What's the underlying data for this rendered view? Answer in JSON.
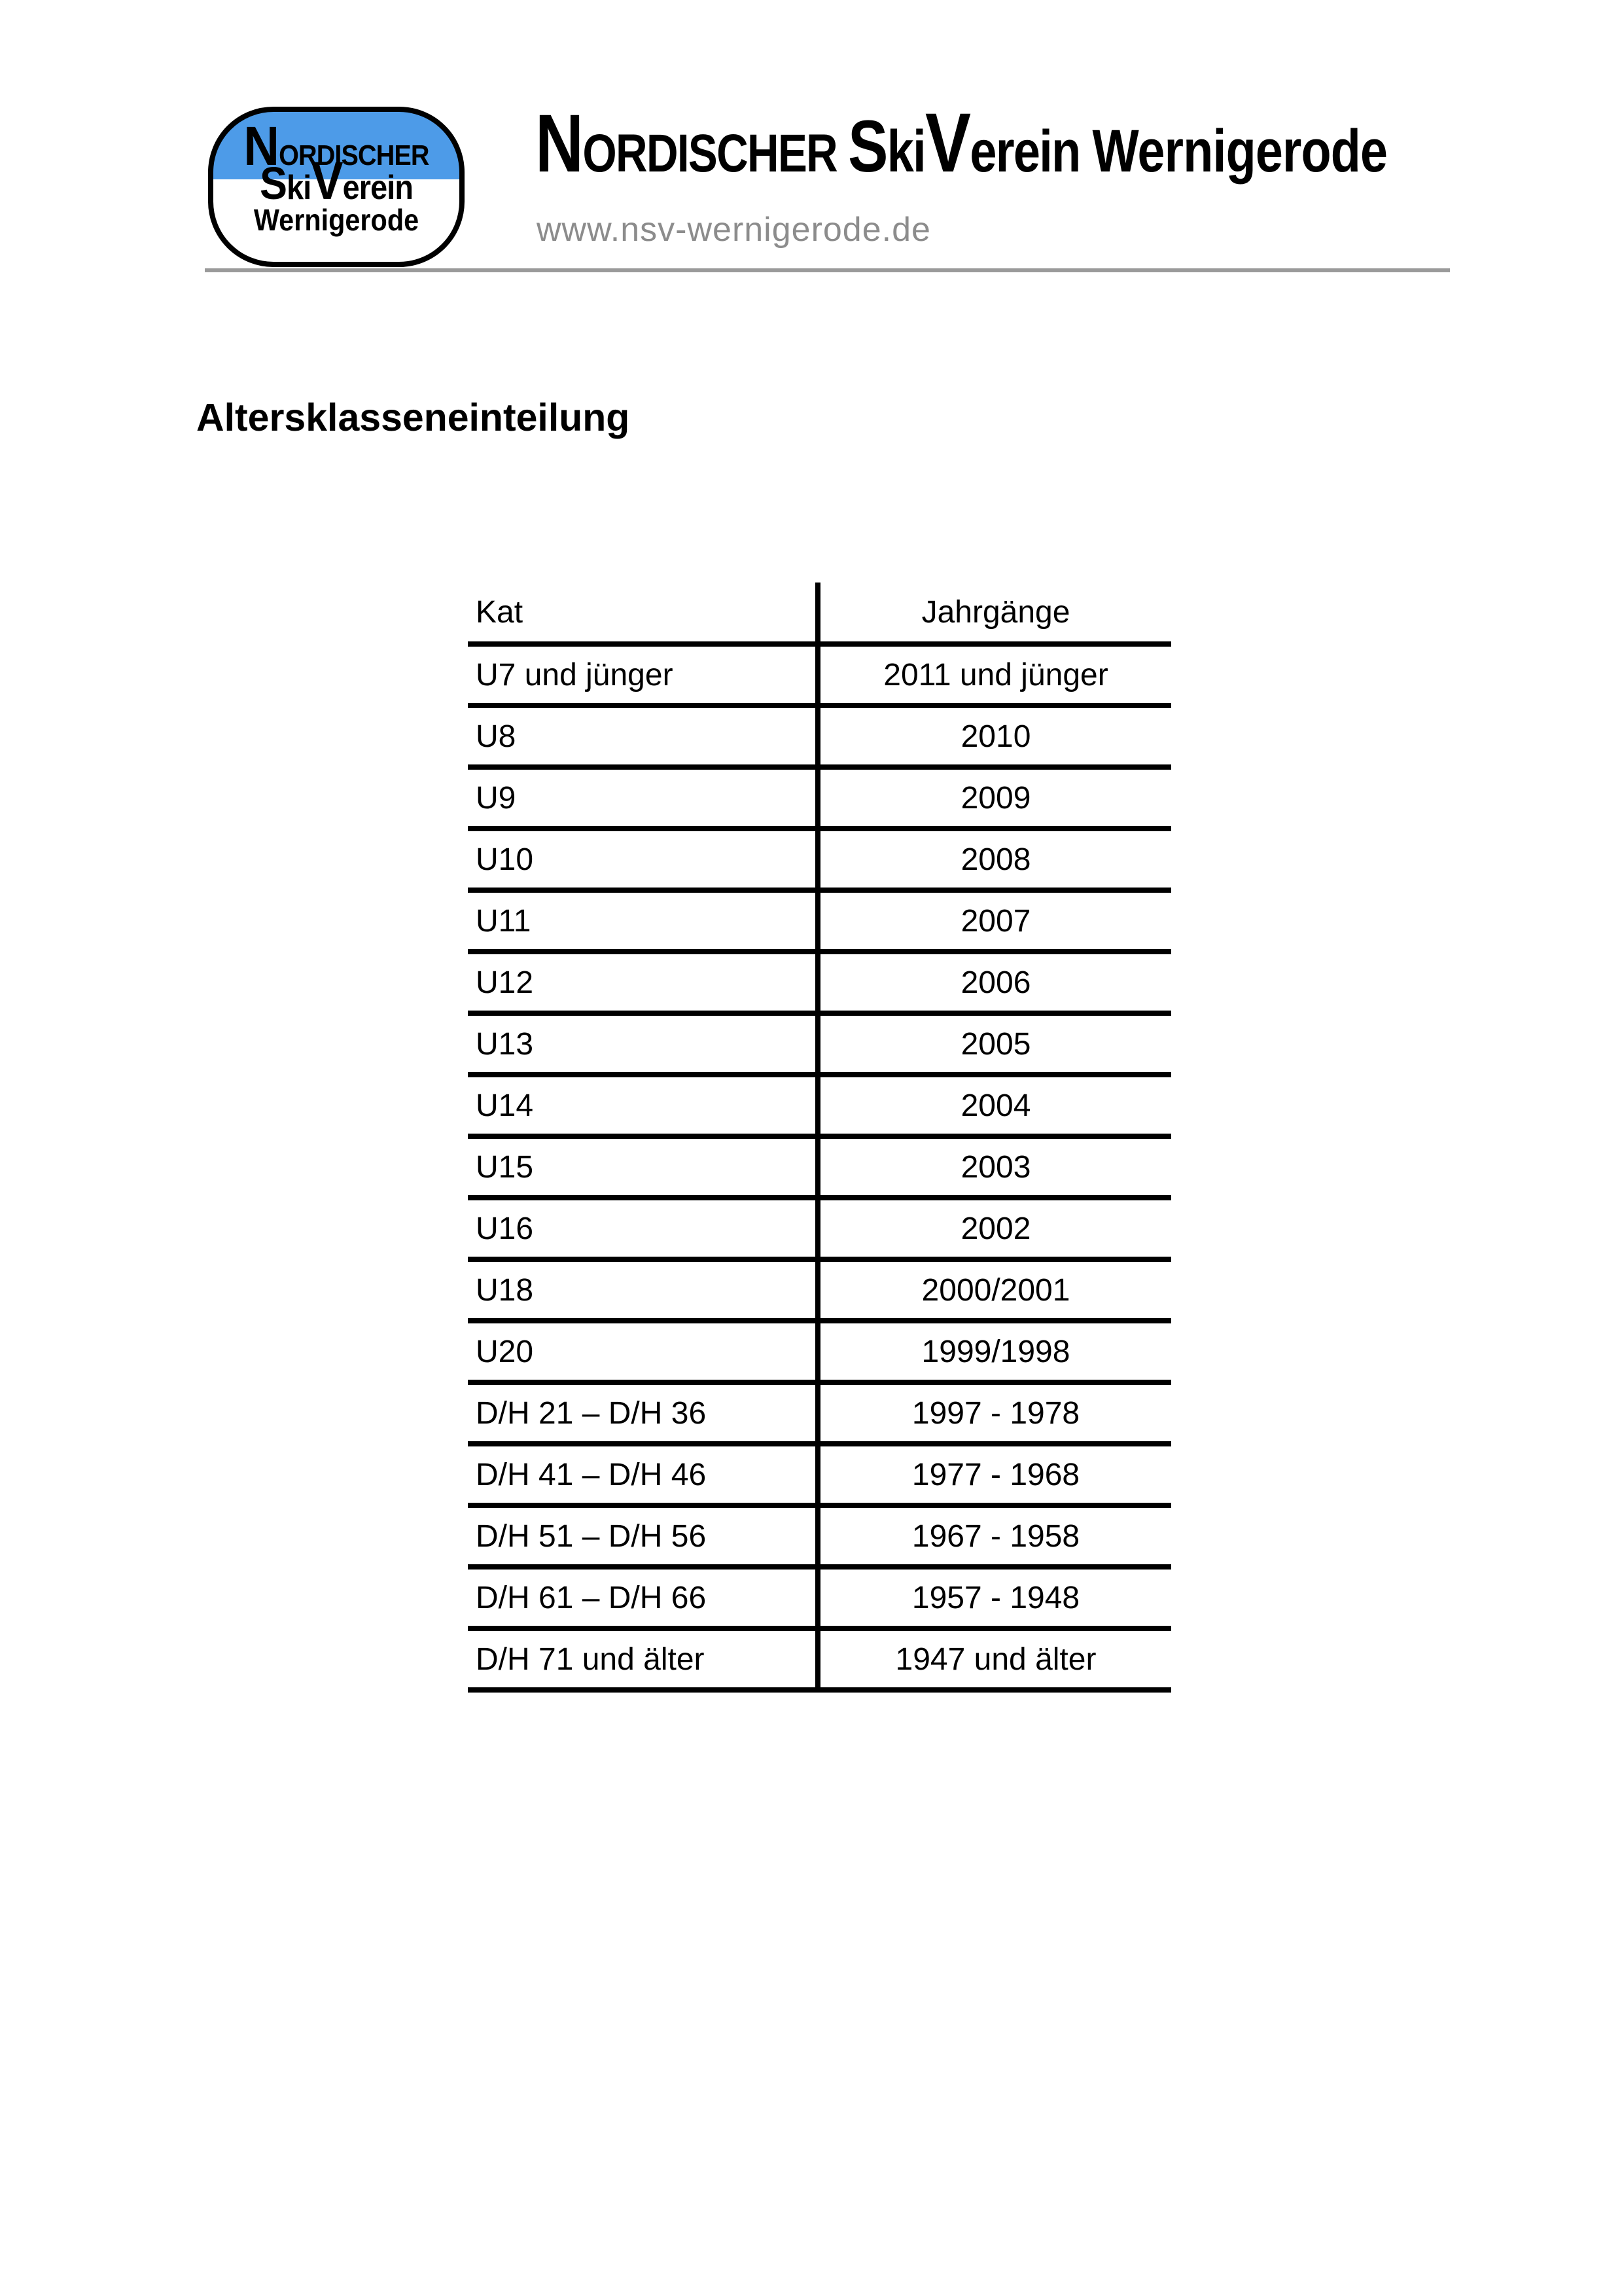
{
  "document": {
    "title": "Altersklasseneinteilung"
  },
  "logo": {
    "initial": "N",
    "rest": "ORDISCHER",
    "ski_s": "S",
    "ski_rest": "ki",
    "verein_v": "V",
    "verein_rest": "erein",
    "city": "Wernigerode"
  },
  "brand": {
    "initial": "N",
    "rest": "ORDISCHER",
    "ski_s": "S",
    "ski_rest": "ki",
    "verein_v": "V",
    "verein_rest": "erein",
    "city": "Wernigerode"
  },
  "website": "www.nsv-wernigerode.de",
  "colors": {
    "logo_blue": "#4d9be8",
    "header_rule_gray": "#9a9a9a",
    "url_gray": "#8c8c8c",
    "text": "#000000"
  },
  "table": {
    "headers": {
      "kat": "Kat",
      "jahrgaenge": "Jahrgänge"
    },
    "rows": [
      {
        "kat": "U7 und jünger",
        "jahrgaenge": "2011 und jünger"
      },
      {
        "kat": "U8",
        "jahrgaenge": "2010"
      },
      {
        "kat": "U9",
        "jahrgaenge": "2009"
      },
      {
        "kat": "U10",
        "jahrgaenge": "2008"
      },
      {
        "kat": "U11",
        "jahrgaenge": "2007"
      },
      {
        "kat": "U12",
        "jahrgaenge": "2006"
      },
      {
        "kat": "U13",
        "jahrgaenge": "2005"
      },
      {
        "kat": "U14",
        "jahrgaenge": "2004"
      },
      {
        "kat": "U15",
        "jahrgaenge": "2003"
      },
      {
        "kat": "U16",
        "jahrgaenge": "2002"
      },
      {
        "kat": "U18",
        "jahrgaenge": "2000/2001"
      },
      {
        "kat": "U20",
        "jahrgaenge": "1999/1998"
      },
      {
        "kat": "D/H 21 – D/H 36",
        "jahrgaenge": "1997 - 1978"
      },
      {
        "kat": "D/H 41 – D/H 46",
        "jahrgaenge": "1977 - 1968"
      },
      {
        "kat": "D/H 51 – D/H 56",
        "jahrgaenge": "1967 - 1958"
      },
      {
        "kat": "D/H 61 – D/H 66",
        "jahrgaenge": "1957 - 1948"
      },
      {
        "kat": "D/H 71 und älter",
        "jahrgaenge": "1947 und älter"
      }
    ]
  }
}
